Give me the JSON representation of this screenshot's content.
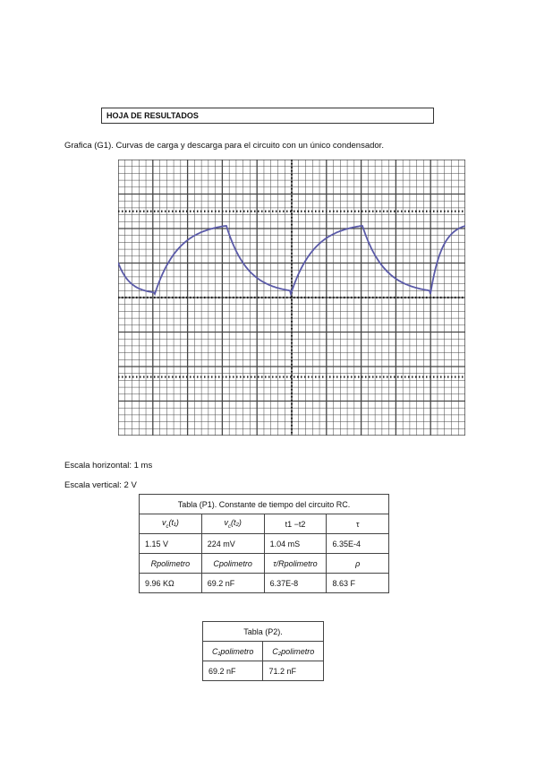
{
  "header": {
    "title": "HOJA DE RESULTADOS"
  },
  "graph": {
    "caption": "Grafica (G1). Curvas de carga y descarga para el circuito con un único condensador."
  },
  "scales": {
    "horizontal": "Escala horizontal: 1 ms",
    "vertical": "Escala vertical: 2 V"
  },
  "table1": {
    "title": "Tabla (P1). Constante de tiempo del circuito RC.",
    "row1_headers": [
      "v",
      "v",
      "t1 −t2",
      "τ"
    ],
    "row1_subs": [
      "t₁",
      "t₂"
    ],
    "row1_values": [
      "1.15 V",
      "224 mV",
      "1.04 mS",
      "6.35E-4"
    ],
    "row2_headers": [
      "Rpolimetro",
      "Cpolimetro",
      "τ/Rpolimetro",
      "ρ"
    ],
    "row2_values": [
      "9.96 KΩ",
      "69.2 nF",
      "6.37E-8",
      "8.63 F"
    ]
  },
  "table2": {
    "title": "Tabla (P2).",
    "headers": [
      "C₁polimetro",
      "C₂polimetro"
    ],
    "values": [
      "69.2 nF",
      "71.2 nF"
    ]
  },
  "colors": {
    "trace": "#5a5aa8",
    "grid": "#444444"
  }
}
